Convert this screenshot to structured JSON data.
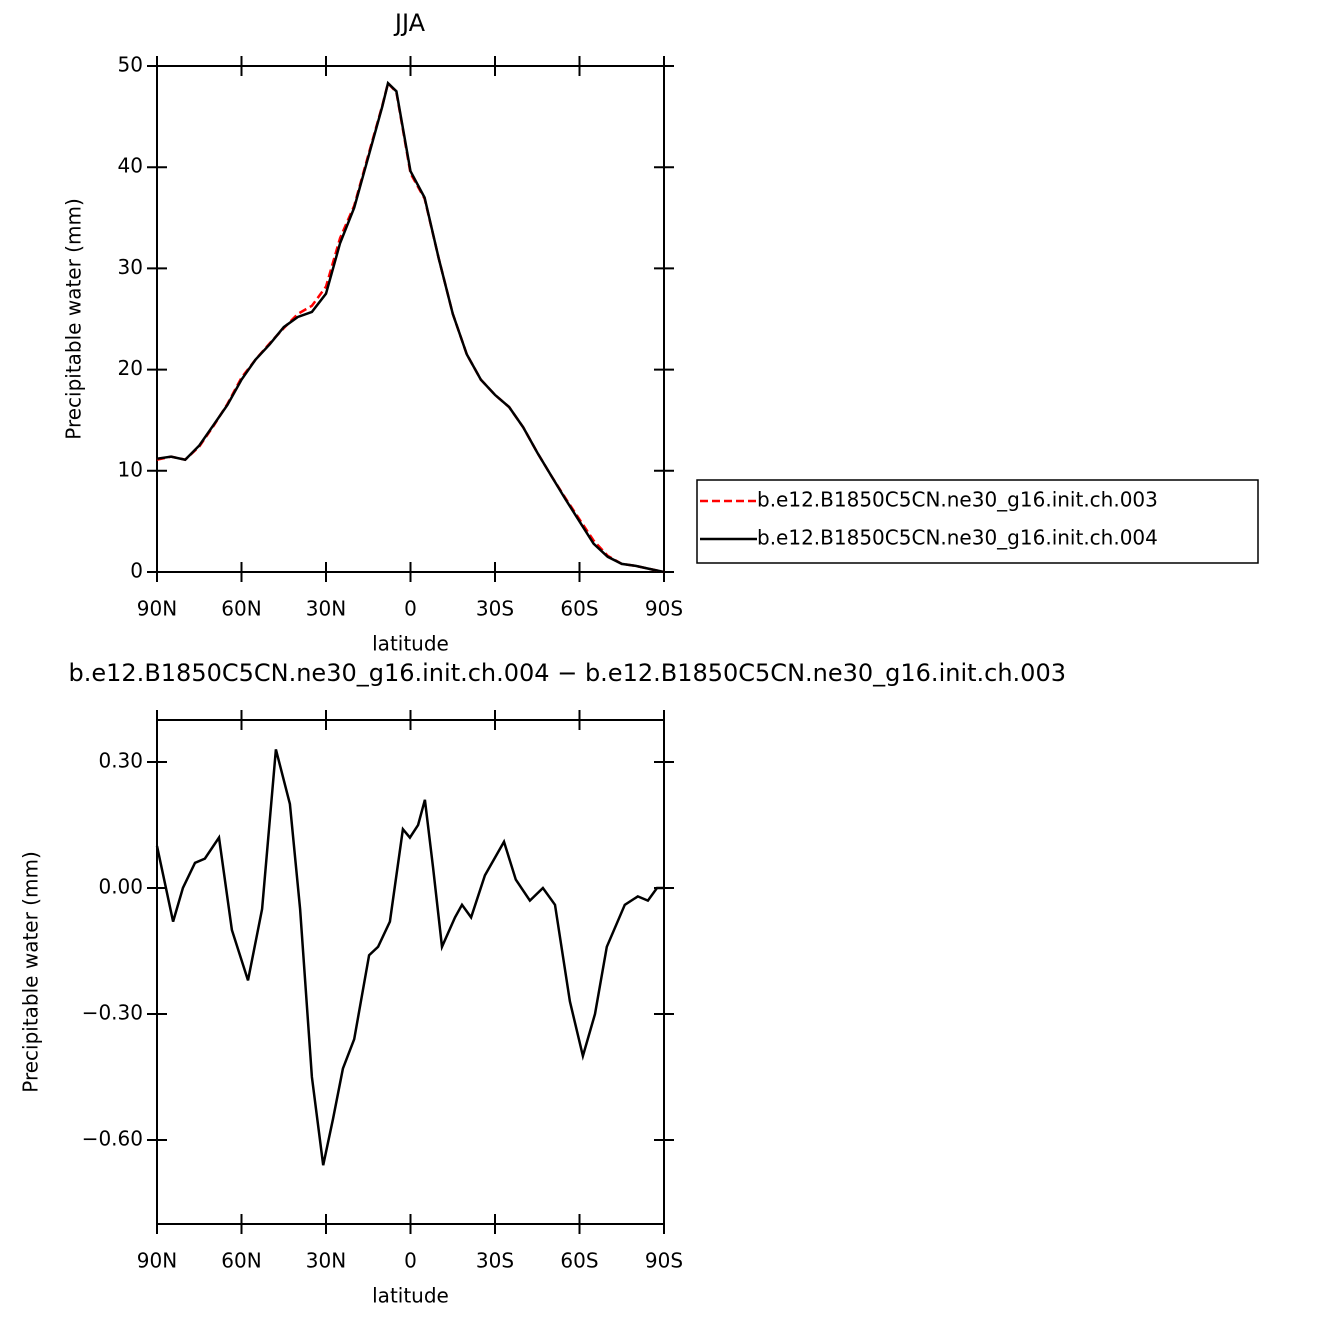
{
  "chart_data": [
    {
      "type": "line",
      "title": "JJA",
      "xlabel": "latitude",
      "ylabel": "Precipitable water (mm)",
      "x": [
        90,
        85,
        80,
        75,
        70,
        65,
        60,
        55,
        50,
        45,
        40,
        35,
        30,
        25,
        20,
        15,
        10,
        8,
        5,
        0,
        -5,
        -10,
        -15,
        -20,
        -25,
        -30,
        -35,
        -40,
        -45,
        -50,
        -55,
        -60,
        -65,
        -70,
        -75,
        -80,
        -85,
        -90
      ],
      "series": [
        {
          "name": "b.e12.B1850C5CN.ne30_g16.init.ch.003",
          "color": "#ff0000",
          "line_style": "dashed",
          "values": [
            11.1,
            11.4,
            11.1,
            12.4,
            14.4,
            16.6,
            19.2,
            21.0,
            22.6,
            24.1,
            25.5,
            26.3,
            28.2,
            33.0,
            36.2,
            41.2,
            46.1,
            48.3,
            47.4,
            39.4,
            36.9,
            31.0,
            25.5,
            21.5,
            19.0,
            17.5,
            16.3,
            14.3,
            11.8,
            9.5,
            7.3,
            5.2,
            3.1,
            1.6,
            0.8,
            0.6,
            0.3,
            0.0
          ]
        },
        {
          "name": "b.e12.B1850C5CN.ne30_g16.init.ch.004",
          "color": "#000000",
          "line_style": "solid",
          "values": [
            11.2,
            11.4,
            11.1,
            12.5,
            14.5,
            16.5,
            19.0,
            21.0,
            22.5,
            24.2,
            25.2,
            25.7,
            27.5,
            32.5,
            36.0,
            41.0,
            46.0,
            48.3,
            47.5,
            39.6,
            37.0,
            31.0,
            25.5,
            21.5,
            19.0,
            17.5,
            16.3,
            14.3,
            11.8,
            9.5,
            7.2,
            5.0,
            2.8,
            1.5,
            0.8,
            0.6,
            0.3,
            0.0
          ]
        }
      ],
      "xlim": [
        90,
        -90
      ],
      "xticks": [
        {
          "value": 90,
          "label": "90N"
        },
        {
          "value": 60,
          "label": "60N"
        },
        {
          "value": 30,
          "label": "30N"
        },
        0,
        {
          "value": -30,
          "label": "30S"
        },
        {
          "value": -60,
          "label": "60S"
        },
        {
          "value": -90,
          "label": "90S"
        }
      ],
      "ylim": [
        0,
        50
      ],
      "yticks": [
        0,
        10,
        20,
        30,
        40,
        50
      ],
      "legend": "right"
    },
    {
      "type": "line",
      "title": "b.e12.B1850C5CN.ne30_g16.init.ch.004 − b.e12.B1850C5CN.ne30_g16.init.ch.003",
      "xlabel": "latitude",
      "ylabel": "Precipitable water (mm)",
      "x": [
        90,
        84.3,
        80.8,
        76.5,
        73,
        68,
        63.4,
        57.7,
        52.7,
        47.8,
        42.8,
        39.2,
        35,
        31,
        27.5,
        24,
        20,
        14.7,
        11.5,
        7.3,
        2.7,
        0.2,
        -2.7,
        -5.1,
        -8,
        -11.2,
        -15.8,
        -18.3,
        -21.5,
        -26.4,
        -33.2,
        -37.4,
        -42.4,
        -47,
        -51.3,
        -56.6,
        -61.2,
        -65.5,
        -69.7,
        -76.1,
        -80.7,
        -84.3,
        -87.5,
        -90
      ],
      "series": [
        {
          "color": "#000000",
          "line_style": "solid",
          "values": [
            0.1,
            -0.08,
            0,
            0.06,
            0.07,
            0.12,
            -0.1,
            -0.22,
            -0.05,
            0.33,
            0.2,
            -0.05,
            -0.45,
            -0.66,
            -0.55,
            -0.43,
            -0.36,
            -0.16,
            -0.14,
            -0.08,
            0.14,
            0.12,
            0.15,
            0.21,
            0.05,
            -0.14,
            -0.07,
            -0.04,
            -0.07,
            0.03,
            0.11,
            0.02,
            -0.03,
            0,
            -0.04,
            -0.27,
            -0.4,
            -0.3,
            -0.14,
            -0.04,
            -0.02,
            -0.03,
            0,
            0
          ]
        }
      ],
      "xlim": [
        90,
        -90
      ],
      "xticks": [
        {
          "value": 90,
          "label": "90N"
        },
        {
          "value": 60,
          "label": "60N"
        },
        {
          "value": 30,
          "label": "30N"
        },
        0,
        {
          "value": -30,
          "label": "30S"
        },
        {
          "value": -60,
          "label": "60S"
        },
        {
          "value": -90,
          "label": "90S"
        }
      ],
      "ylim": [
        -0.8,
        0.4
      ],
      "yticks": [
        {
          "value": 0.3,
          "label": "0.30"
        },
        {
          "value": 0,
          "label": "0.00"
        },
        {
          "value": -0.3,
          "label": "−0.30"
        },
        {
          "value": -0.6,
          "label": "−0.60"
        }
      ]
    }
  ]
}
